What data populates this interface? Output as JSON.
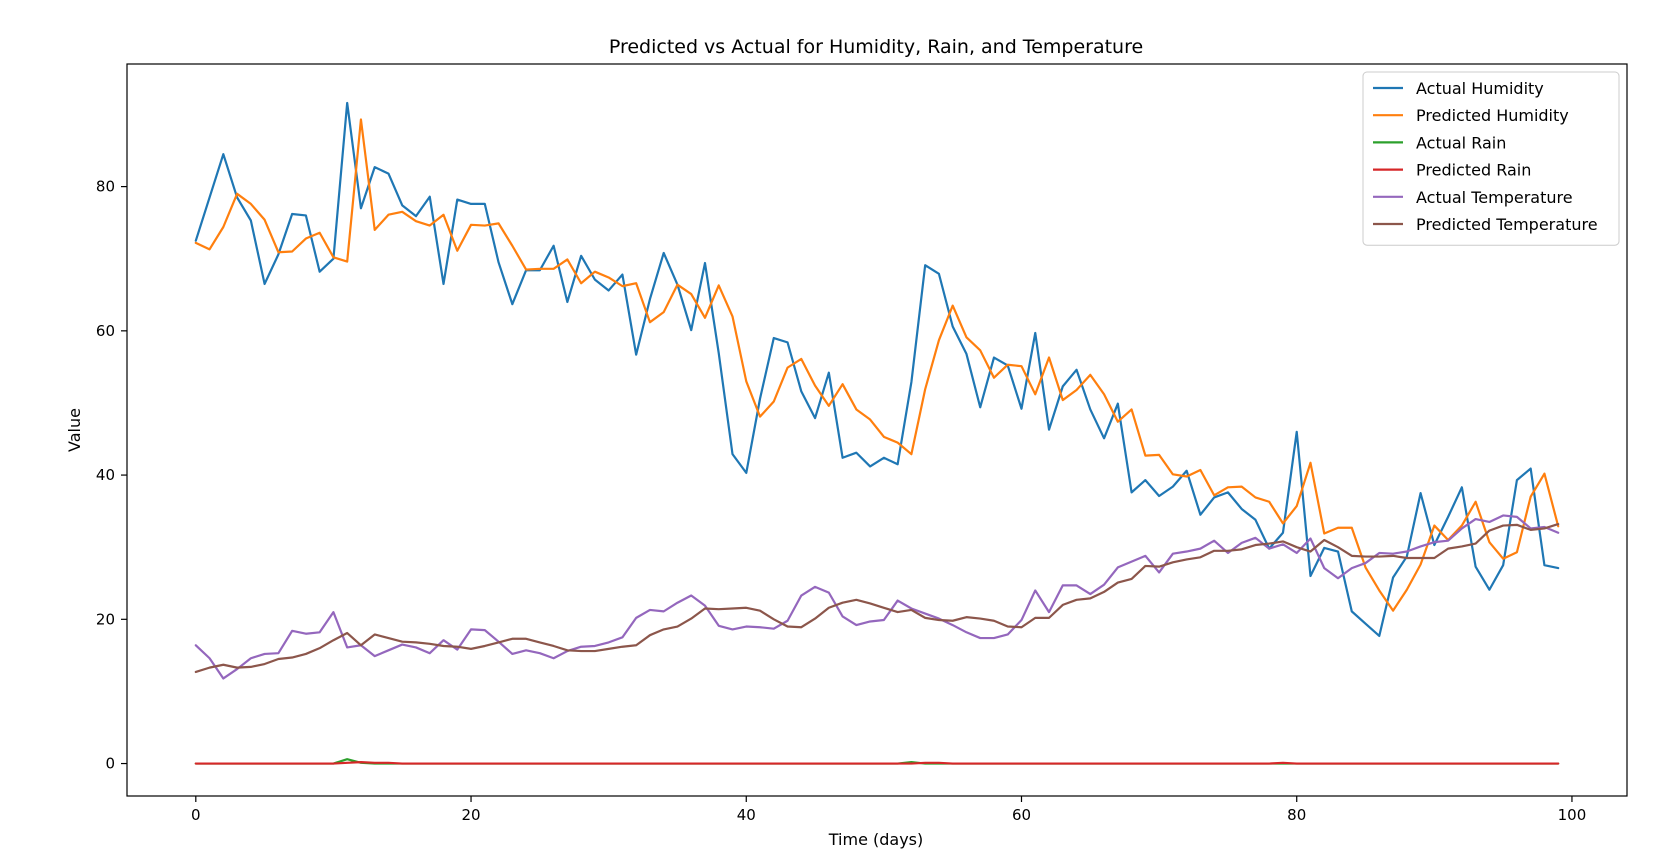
{
  "chart_data": {
    "type": "line",
    "title": "Predicted vs Actual for Humidity, Rain, and Temperature",
    "xlabel": "Time (days)",
    "ylabel": "Value",
    "xlim": [
      -5,
      104
    ],
    "ylim": [
      -4.5,
      97
    ],
    "xticks": [
      0,
      20,
      40,
      60,
      80,
      100
    ],
    "yticks": [
      0,
      20,
      40,
      60,
      80
    ],
    "grid": false,
    "legend_position": "top-right",
    "series": [
      {
        "name": "Actual Humidity",
        "color": "#1f77b4",
        "values": [
          72.5,
          78.5,
          84.5,
          78.5,
          75.3,
          66.5,
          70.6,
          76.2,
          76.0,
          68.2,
          70.0,
          91.6,
          77.0,
          82.7,
          81.8,
          77.4,
          75.9,
          78.6,
          66.5,
          78.2,
          77.6,
          77.6,
          69.5,
          63.7,
          68.4,
          68.4,
          71.8,
          64.0,
          70.4,
          67.1,
          65.6,
          67.8,
          56.7,
          64.4,
          70.8,
          66.4,
          60.1,
          69.4,
          56.9,
          42.9,
          40.3,
          50.6,
          59.0,
          58.4,
          51.6,
          47.9,
          54.2,
          42.4,
          43.1,
          41.2,
          42.4,
          41.5,
          52.9,
          69.1,
          67.9,
          60.6,
          56.8,
          49.4,
          56.3,
          55.2,
          49.2,
          59.7,
          46.3,
          52.3,
          54.6,
          49.1,
          45.1,
          49.9,
          37.6,
          39.3,
          37.1,
          38.4,
          40.6,
          34.5,
          36.9,
          37.6,
          35.3,
          33.8,
          29.8,
          32.0,
          46.0,
          26.0,
          29.9,
          29.4,
          21.1,
          19.4,
          17.7,
          25.8,
          28.7,
          37.5,
          30.3,
          34.2,
          38.3,
          27.3,
          24.1,
          27.5,
          39.3,
          40.9,
          27.5,
          27.1
        ]
      },
      {
        "name": "Predicted Humidity",
        "color": "#ff7f0e",
        "values": [
          72.2,
          71.3,
          74.4,
          79.0,
          77.6,
          75.4,
          70.9,
          71.0,
          72.8,
          73.6,
          70.2,
          69.6,
          89.3,
          74.0,
          76.1,
          76.5,
          75.2,
          74.6,
          76.1,
          71.1,
          74.7,
          74.6,
          74.9,
          71.8,
          68.5,
          68.6,
          68.6,
          69.9,
          66.6,
          68.2,
          67.4,
          66.2,
          66.6,
          61.2,
          62.6,
          66.4,
          65.1,
          61.8,
          66.3,
          62.0,
          53.0,
          48.1,
          50.2,
          54.9,
          56.1,
          52.4,
          49.6,
          52.6,
          49.1,
          47.7,
          45.3,
          44.5,
          42.9,
          51.9,
          58.7,
          63.5,
          59.1,
          57.3,
          53.5,
          55.3,
          55.1,
          51.2,
          56.3,
          50.4,
          51.8,
          53.9,
          51.2,
          47.4,
          49.1,
          42.7,
          42.8,
          40.1,
          39.8,
          40.7,
          37.2,
          38.3,
          38.4,
          36.9,
          36.3,
          33.3,
          35.7,
          41.7,
          31.9,
          32.7,
          32.7,
          27.2,
          24.0,
          21.2,
          24.1,
          27.6,
          33.0,
          31.0,
          33.0,
          36.3,
          30.7,
          28.4,
          29.3,
          37.0,
          40.2,
          32.9
        ]
      },
      {
        "name": "Actual Rain",
        "color": "#2ca02c",
        "values": [
          0.0,
          0.0,
          0.0,
          0.0,
          0.0,
          0.0,
          0.0,
          0.0,
          0.0,
          0.0,
          0.0,
          0.6,
          0.1,
          0.0,
          0.0,
          0.0,
          0.0,
          0.0,
          0.0,
          0.0,
          0.0,
          0.0,
          0.0,
          0.0,
          0.0,
          0.0,
          0.0,
          0.0,
          0.0,
          0.0,
          0.0,
          0.0,
          0.0,
          0.0,
          0.0,
          0.0,
          0.0,
          0.0,
          0.0,
          0.0,
          0.0,
          0.0,
          0.0,
          0.0,
          0.0,
          0.0,
          0.0,
          0.0,
          0.0,
          0.0,
          0.0,
          0.0,
          0.2,
          0.0,
          0.0,
          0.0,
          0.0,
          0.0,
          0.0,
          0.0,
          0.0,
          0.0,
          0.0,
          0.0,
          0.0,
          0.0,
          0.0,
          0.0,
          0.0,
          0.0,
          0.0,
          0.0,
          0.0,
          0.0,
          0.0,
          0.0,
          0.0,
          0.0,
          0.0,
          0.0,
          0.0,
          0.0,
          0.0,
          0.0,
          0.0,
          0.0,
          0.0,
          0.0,
          0.0,
          0.0,
          0.0,
          0.0,
          0.0,
          0.0,
          0.0,
          0.0,
          0.0,
          0.0,
          0.0,
          0.0
        ]
      },
      {
        "name": "Predicted Rain",
        "color": "#d62728",
        "values": [
          0.0,
          0.0,
          0.0,
          0.0,
          0.0,
          0.0,
          0.0,
          0.0,
          0.0,
          0.0,
          0.0,
          0.1,
          0.2,
          0.1,
          0.1,
          0.0,
          0.0,
          0.0,
          0.0,
          0.0,
          0.0,
          0.0,
          0.0,
          0.0,
          0.0,
          0.0,
          0.0,
          0.0,
          0.0,
          0.0,
          0.0,
          0.0,
          0.0,
          0.0,
          0.0,
          0.0,
          0.0,
          0.0,
          0.0,
          0.0,
          0.0,
          0.0,
          0.0,
          0.0,
          0.0,
          0.0,
          0.0,
          0.0,
          0.0,
          0.0,
          0.0,
          0.0,
          0.0,
          0.1,
          0.1,
          0.0,
          0.0,
          0.0,
          0.0,
          0.0,
          0.0,
          0.0,
          0.0,
          0.0,
          0.0,
          0.0,
          0.0,
          0.0,
          0.0,
          0.0,
          0.0,
          0.0,
          0.0,
          0.0,
          0.0,
          0.0,
          0.0,
          0.0,
          0.0,
          0.1,
          0.0,
          0.0,
          0.0,
          0.0,
          0.0,
          0.0,
          0.0,
          0.0,
          0.0,
          0.0,
          0.0,
          0.0,
          0.0,
          0.0,
          0.0,
          0.0,
          0.0,
          0.0,
          0.0,
          0.0
        ]
      },
      {
        "name": "Actual Temperature",
        "color": "#9467bd",
        "values": [
          16.4,
          14.6,
          11.8,
          13.1,
          14.6,
          15.2,
          15.3,
          18.4,
          18.0,
          18.2,
          21.0,
          16.1,
          16.4,
          14.9,
          15.7,
          16.5,
          16.1,
          15.3,
          17.1,
          15.8,
          18.6,
          18.5,
          16.9,
          15.2,
          15.7,
          15.3,
          14.6,
          15.6,
          16.2,
          16.3,
          16.8,
          17.5,
          20.2,
          21.3,
          21.1,
          22.3,
          23.3,
          21.9,
          19.1,
          18.6,
          19.0,
          18.9,
          18.7,
          19.8,
          23.3,
          24.5,
          23.7,
          20.4,
          19.2,
          19.7,
          19.9,
          22.6,
          21.5,
          20.8,
          20.1,
          19.2,
          18.2,
          17.4,
          17.4,
          17.9,
          19.9,
          24.0,
          21.0,
          24.7,
          24.7,
          23.5,
          24.8,
          27.2,
          28.0,
          28.8,
          26.5,
          29.1,
          29.4,
          29.8,
          30.9,
          29.2,
          30.6,
          31.3,
          29.8,
          30.4,
          29.2,
          31.2,
          27.1,
          25.7,
          27.1,
          27.8,
          29.2,
          29.1,
          29.4,
          30.1,
          30.7,
          30.9,
          32.6,
          33.9,
          33.5,
          34.4,
          34.2,
          32.6,
          32.8,
          32.0
        ]
      },
      {
        "name": "Predicted Temperature",
        "color": "#8c564b",
        "values": [
          12.7,
          13.3,
          13.7,
          13.3,
          13.4,
          13.8,
          14.5,
          14.7,
          15.2,
          16.0,
          17.1,
          18.1,
          16.4,
          17.9,
          17.4,
          16.9,
          16.8,
          16.6,
          16.3,
          16.2,
          15.9,
          16.3,
          16.8,
          17.3,
          17.3,
          16.8,
          16.3,
          15.7,
          15.6,
          15.6,
          15.9,
          16.2,
          16.4,
          17.8,
          18.6,
          19.0,
          20.1,
          21.5,
          21.4,
          21.5,
          21.6,
          21.2,
          20.0,
          19.0,
          18.9,
          20.1,
          21.6,
          22.3,
          22.7,
          22.2,
          21.6,
          21.0,
          21.3,
          20.2,
          19.9,
          19.8,
          20.3,
          20.1,
          19.8,
          19.0,
          18.9,
          20.2,
          20.2,
          22.0,
          22.7,
          22.9,
          23.8,
          25.1,
          25.6,
          27.4,
          27.3,
          27.9,
          28.3,
          28.6,
          29.5,
          29.5,
          29.7,
          30.3,
          30.5,
          30.8,
          30.0,
          29.4,
          31.0,
          30.0,
          28.8,
          28.7,
          28.7,
          28.8,
          28.5,
          28.5,
          28.5,
          29.8,
          30.1,
          30.5,
          32.3,
          33.0,
          33.1,
          32.4,
          32.6,
          33.2
        ]
      }
    ]
  }
}
